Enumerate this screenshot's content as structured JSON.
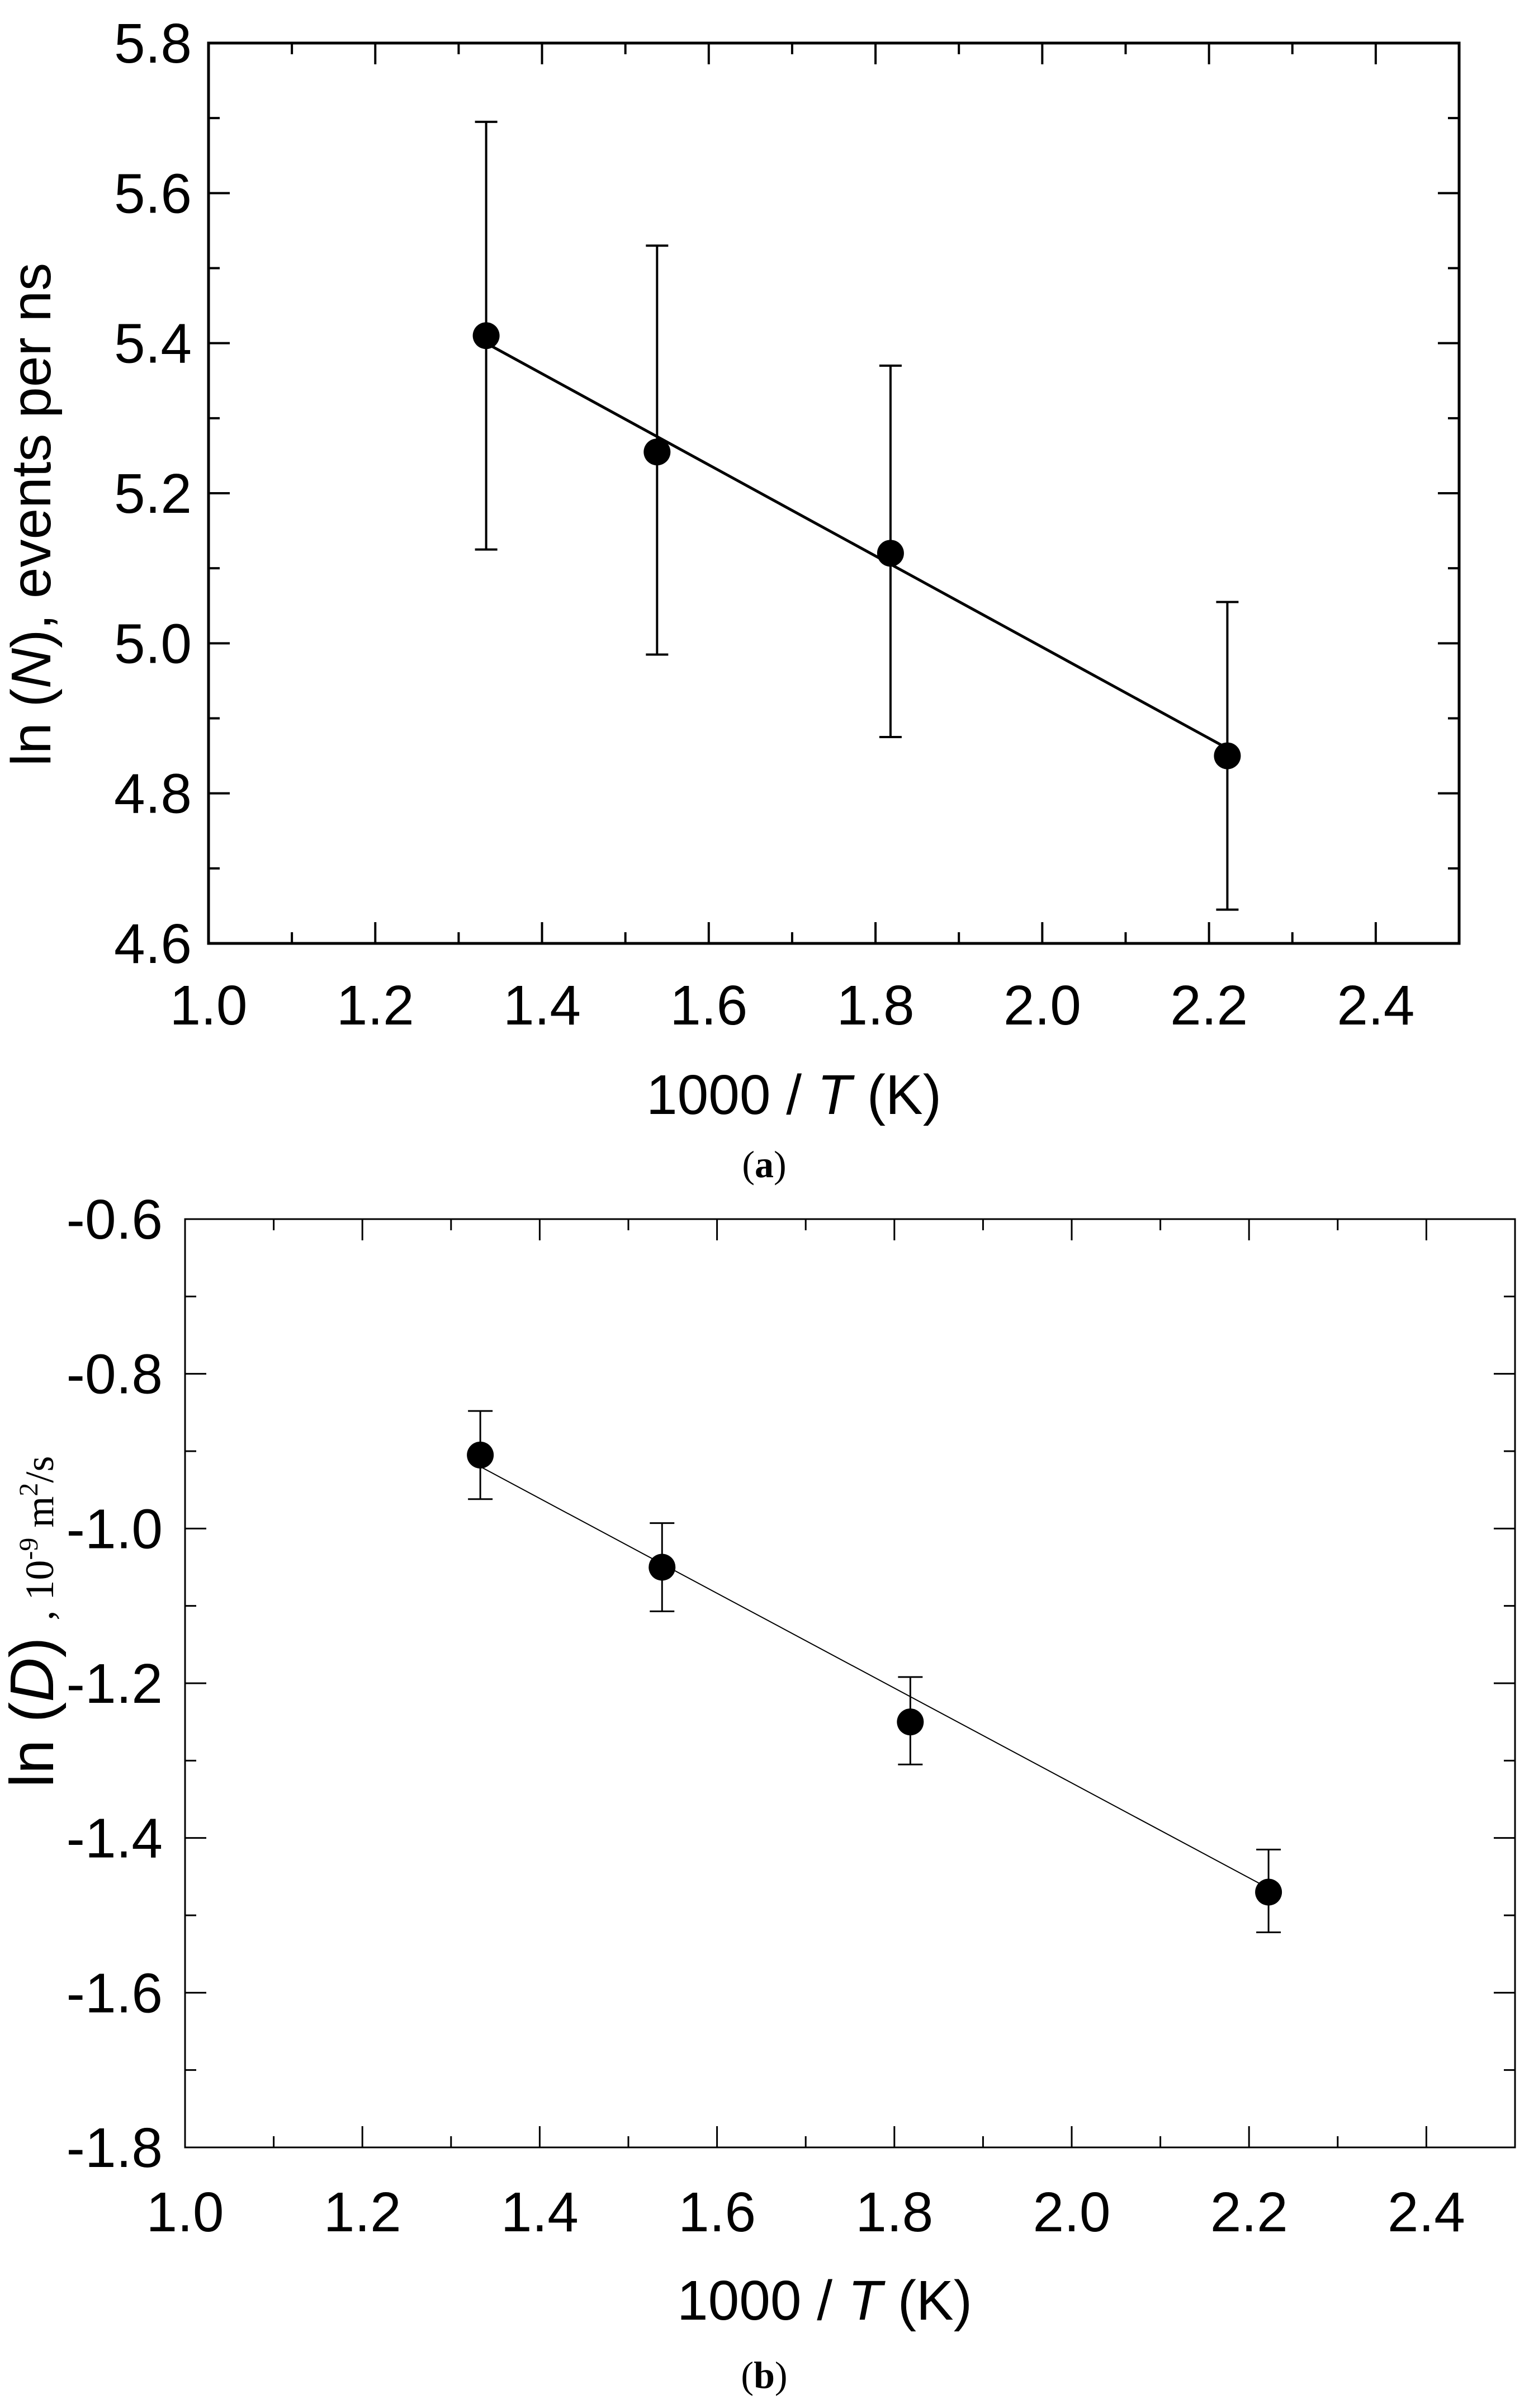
{
  "chart_data": [
    {
      "type": "scatter",
      "panel": "a",
      "caption": "a",
      "xlabel_prefix": "1000 / ",
      "xlabel_italic": "T",
      "xlabel_suffix": " (K)",
      "ylabel_prefix": "ln (",
      "ylabel_italic": "N",
      "ylabel_suffix": "), events per ns",
      "xlim": [
        1.0,
        2.5
      ],
      "ylim": [
        4.6,
        5.8
      ],
      "x_ticks": [
        "1.0",
        "1.2",
        "1.4",
        "1.6",
        "1.8",
        "2.0",
        "2.2",
        "2.4"
      ],
      "y_ticks": [
        "4.6",
        "4.8",
        "5.0",
        "5.2",
        "5.4",
        "5.6",
        "5.8"
      ],
      "series": [
        {
          "name": "ln(N)",
          "points": [
            {
              "x": 1.333,
              "y": 5.41,
              "err_low": 5.125,
              "err_high": 5.695
            },
            {
              "x": 1.538,
              "y": 5.255,
              "err_low": 4.985,
              "err_high": 5.53
            },
            {
              "x": 1.818,
              "y": 5.12,
              "err_low": 4.875,
              "err_high": 5.37
            },
            {
              "x": 2.222,
              "y": 4.85,
              "err_low": 4.645,
              "err_high": 5.055
            }
          ],
          "fit": {
            "x": [
              1.333,
              2.222
            ],
            "y": [
              5.4,
              4.86
            ]
          }
        }
      ]
    },
    {
      "type": "scatter",
      "panel": "b",
      "caption": "b",
      "xlabel_prefix": "1000 / ",
      "xlabel_italic": "T",
      "xlabel_suffix": " (K)",
      "ylabel_prefix": "ln (",
      "ylabel_italic": "D",
      "ylabel_suffix": ")",
      "ylabel_units": ", 10",
      "ylabel_units_exp": "-9",
      "ylabel_units_tail": " m",
      "ylabel_units_exp2": "2",
      "ylabel_units_end": "/s",
      "xlim": [
        1.0,
        2.5
      ],
      "ylim": [
        -1.8,
        -0.6
      ],
      "x_ticks": [
        "1.0",
        "1.2",
        "1.4",
        "1.6",
        "1.8",
        "2.0",
        "2.2",
        "2.4"
      ],
      "y_ticks": [
        "-1.8",
        "-1.6",
        "-1.4",
        "-1.2",
        "-1.0",
        "-0.8",
        "-0.6"
      ],
      "series": [
        {
          "name": "ln(D)",
          "points": [
            {
              "x": 1.333,
              "y": -0.905,
              "err_low": -0.962,
              "err_high": -0.848
            },
            {
              "x": 1.538,
              "y": -1.05,
              "err_low": -1.107,
              "err_high": -0.993
            },
            {
              "x": 1.818,
              "y": -1.25,
              "err_low": -1.305,
              "err_high": -1.192
            },
            {
              "x": 2.222,
              "y": -1.47,
              "err_low": -1.522,
              "err_high": -1.415
            }
          ],
          "fit": {
            "x": [
              1.333,
              2.222
            ],
            "y": [
              -0.92,
              -1.465
            ]
          }
        }
      ]
    }
  ]
}
